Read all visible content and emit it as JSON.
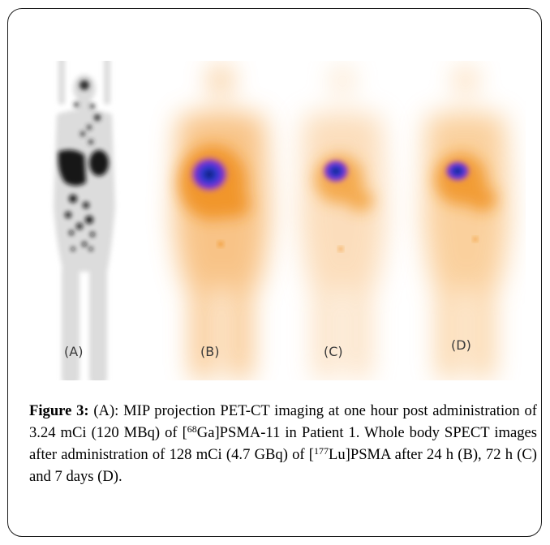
{
  "figure": {
    "panels": [
      {
        "id": "A",
        "label": "(A)",
        "modality": "PET-CT MIP"
      },
      {
        "id": "B",
        "label": "(B)",
        "modality": "SPECT 24 h"
      },
      {
        "id": "C",
        "label": "(C)",
        "modality": "SPECT 72 h"
      },
      {
        "id": "D",
        "label": "(D)",
        "modality": "SPECT 7 days"
      }
    ],
    "colors": {
      "pet_grayscale": "#111111",
      "spect_orange": "#f39a1e",
      "spect_purple": "#6a2bd8",
      "spect_blue": "#1a3fbf"
    }
  },
  "caption": {
    "heading": "Figure 3:",
    "p1": " (A): MIP projection PET-CT imaging at one hour post administration of 3.24 mCi (120 MBq) of [",
    "sup1": "68",
    "p2": "Ga]PSMA-11 in Patient 1. Whole body SPECT images after administration of 128 mCi (4.7 GBq) of [",
    "sup2": "177",
    "p3": "Lu]PSMA after 24 h (B), 72 h (C) and 7 days (D)."
  }
}
